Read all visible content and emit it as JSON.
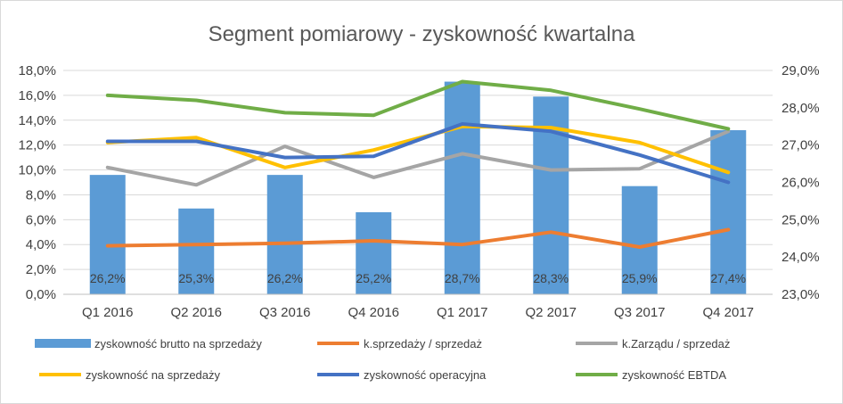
{
  "chart_data": {
    "type": "bar+line",
    "title": "Segment pomiarowy - zyskowność kwartalna",
    "categories": [
      "Q1 2016",
      "Q2 2016",
      "Q3 2016",
      "Q4 2016",
      "Q1 2017",
      "Q2 2017",
      "Q3 2017",
      "Q4 2017"
    ],
    "left_axis": {
      "ylim": [
        0,
        18
      ],
      "ticks": [
        "0,0%",
        "2,0%",
        "4,0%",
        "6,0%",
        "8,0%",
        "10,0%",
        "12,0%",
        "14,0%",
        "16,0%",
        "18,0%"
      ]
    },
    "right_axis": {
      "ylim": [
        23,
        29
      ],
      "ticks": [
        "23,0%",
        "24,0%",
        "25,0%",
        "26,0%",
        "27,0%",
        "28,0%",
        "29,0%"
      ]
    },
    "grid": true,
    "legend_position": "bottom",
    "series": [
      {
        "name": "zyskowność brutto na sprzedaży",
        "kind": "bar",
        "axis": "right",
        "color": "#5b9bd5",
        "values": [
          26.2,
          25.3,
          26.2,
          25.2,
          28.7,
          28.3,
          25.9,
          27.4
        ],
        "labels": [
          "26,2%",
          "25,3%",
          "26,2%",
          "25,2%",
          "28,7%",
          "28,3%",
          "25,9%",
          "27,4%"
        ]
      },
      {
        "name": "k.sprzedaży / sprzedaż",
        "kind": "line",
        "axis": "left",
        "color": "#ed7d31",
        "values": [
          3.9,
          4.0,
          4.1,
          4.3,
          4.0,
          5.0,
          3.8,
          5.2
        ]
      },
      {
        "name": "k.Zarządu / sprzedaż",
        "kind": "line",
        "axis": "left",
        "color": "#a5a5a5",
        "values": [
          10.2,
          8.8,
          11.9,
          9.4,
          11.3,
          10.0,
          10.1,
          13.1
        ]
      },
      {
        "name": "zyskowność na sprzedaży",
        "kind": "line",
        "axis": "left",
        "color": "#ffc000",
        "values": [
          12.2,
          12.6,
          10.2,
          11.6,
          13.5,
          13.4,
          12.2,
          9.8
        ]
      },
      {
        "name": "zyskowność operacyjna",
        "kind": "line",
        "axis": "left",
        "color": "#4472c4",
        "values": [
          12.3,
          12.3,
          11.0,
          11.1,
          13.7,
          13.1,
          11.2,
          9.0
        ]
      },
      {
        "name": "zyskowność EBTDA",
        "kind": "line",
        "axis": "left",
        "color": "#70ad47",
        "values": [
          16.0,
          15.6,
          14.6,
          14.4,
          17.1,
          16.4,
          14.9,
          13.3
        ]
      }
    ]
  }
}
